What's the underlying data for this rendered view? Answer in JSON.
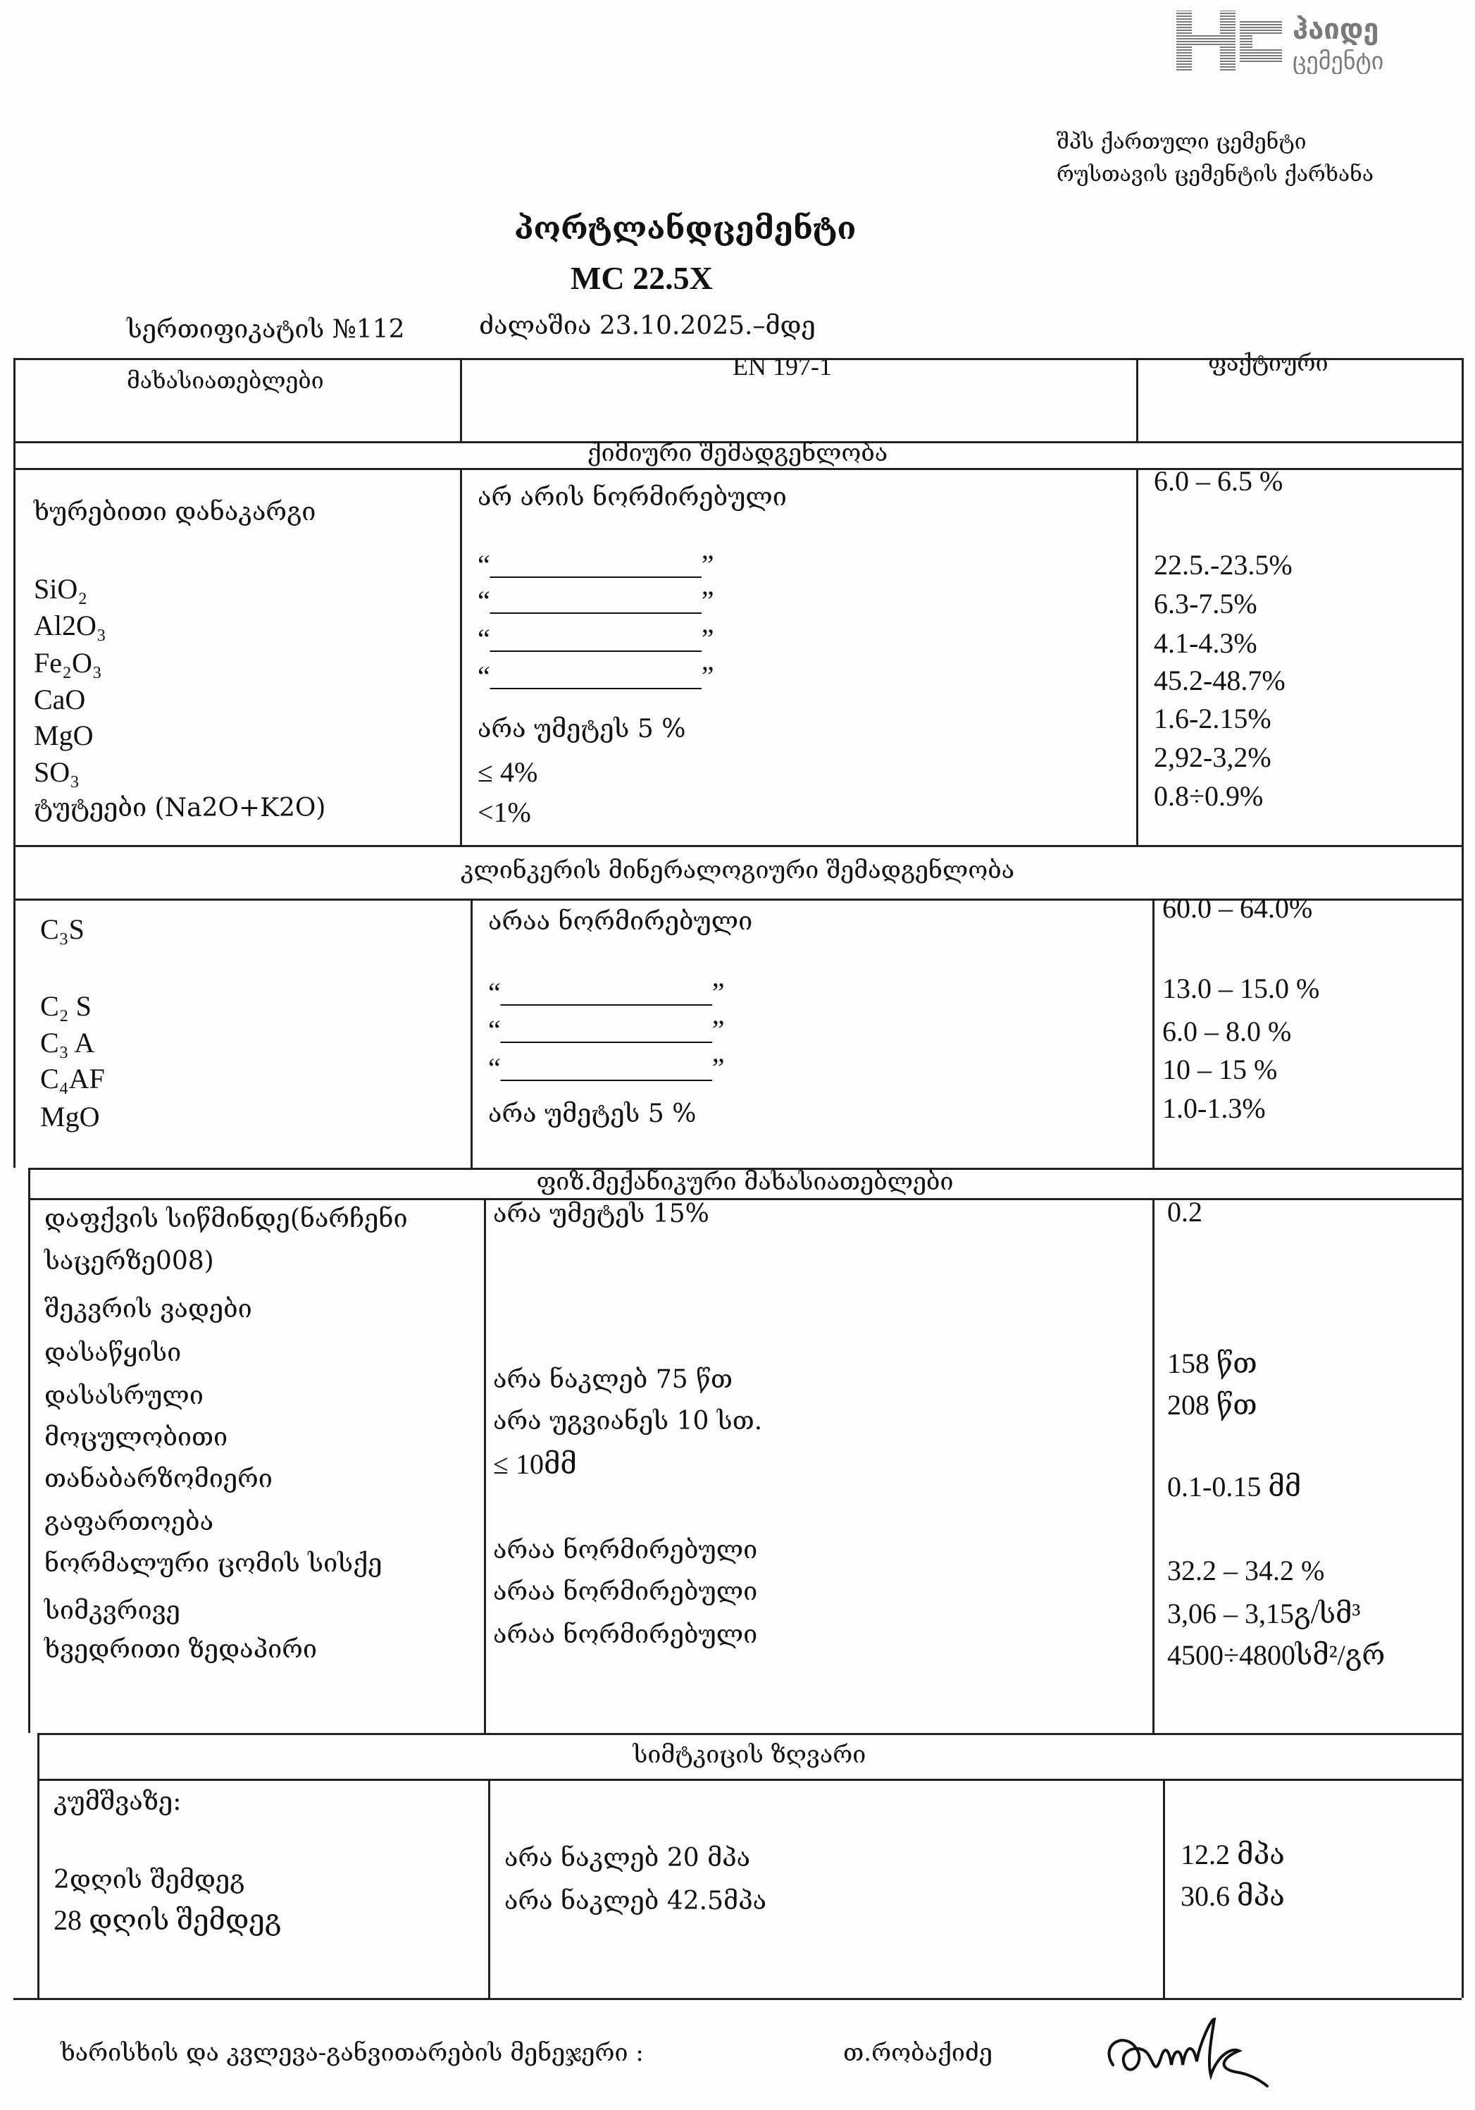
{
  "logo": {
    "line1": "ჰაიდე",
    "line2": "ცემენტი",
    "color": "#8a8a8a"
  },
  "company": {
    "line1": "შპს ქართული ცემენტი",
    "line2": "რუსთავის ცემენტის ქარხანა"
  },
  "title": {
    "line1": "პორტლანდცემენტი",
    "line2": "MC 22.5X"
  },
  "certificate": {
    "number": "სერთიფიკატის №112",
    "validity": "ძალაშია  23.10.2025.–მდე"
  },
  "table_header": {
    "col1": "მახასიათებლები",
    "col2": "EN 197-1",
    "col3": "ფაქტიური"
  },
  "sections": [
    {
      "title": "ქიმიური შემადგენლობა",
      "characteristics": [
        "ხურებითი დანაკარგი",
        "SiO₂",
        "Al2O₃",
        "Fe₂O₃",
        "CaO",
        "MgO",
        "SO₃",
        "ტუტეები (Na2O+K2O)"
      ],
      "norms": [
        "არ არის  ნორმირებული",
        "“_______________”",
        "“_______________”",
        "“_______________”",
        "“_______________”",
        "არა უმეტეს  5  %",
        "≤ 4%",
        "<1%"
      ],
      "actual": [
        "6.0  –  6.5  %",
        "22.5.-23.5%",
        "6.3-7.5%",
        "4.1-4.3%",
        "45.2-48.7%",
        "1.6-2.15%",
        "2,92-3,2%",
        "0.8÷0.9%"
      ]
    },
    {
      "title": "კლინკერის მინერალოგიური შემადგენლობა",
      "characteristics": [
        "C₃S",
        "C₂ S",
        "C₃ A",
        "C₄AF",
        "MgO"
      ],
      "norms": [
        "არაა ნორმირებული",
        "“_______________”",
        "“_______________”",
        "“_______________”",
        "არა უმეტეს  5  %"
      ],
      "actual": [
        "60.0  –  64.0%",
        "13.0  –  15.0  %",
        "6.0  –    8.0  %",
        "10  –     15  %",
        "1.0-1.3%"
      ]
    },
    {
      "title": "ფიზ.მექანიკური მახასიათებლები",
      "characteristics": [
        "დაფქვის სიწმინდე(ნარჩენი",
        "საცერზე008)",
        "შეკვრის ვადები",
        "დასაწყისი",
        "დასასრული",
        "მოცულობითი",
        "თანაბარზომიერი",
        "გაფართოება",
        "ნორმალური ცომის სისქე",
        "სიმკვრივე",
        "ხვედრითი ზედაპირი"
      ],
      "norms": [
        "არა უმეტეს 15%",
        "არა ნაკლებ 75  წთ",
        "არა უგვიანეს 10 სთ.",
        "≤ 10მმ",
        "არაა ნორმირებული",
        "არაა ნორმირებული",
        "არაა ნორმირებული"
      ],
      "actual": [
        "0.2",
        "158 წთ",
        "208 წთ",
        "0.1-0.15 მმ",
        "32.2  –  34.2  %",
        "3,06 – 3,15გ/სმ³",
        "4500÷4800სმ²/გრ"
      ]
    },
    {
      "title": "სიმტკიცის ზღვარი",
      "characteristics": [
        "კუმშვაზე:",
        "2დღის შემდეგ",
        "28 დღის შემდეგ"
      ],
      "norms": [
        "არა ნაკლებ  20  მპა",
        "არა ნაკლებ 42.5მპა"
      ],
      "actual": [
        "12.2    მპა",
        "30.6 მპა"
      ]
    }
  ],
  "footer": {
    "label": "ხარისხის და კვლევა-განვითარების მენეჯერი :",
    "name": "თ.რობაქიძე"
  }
}
